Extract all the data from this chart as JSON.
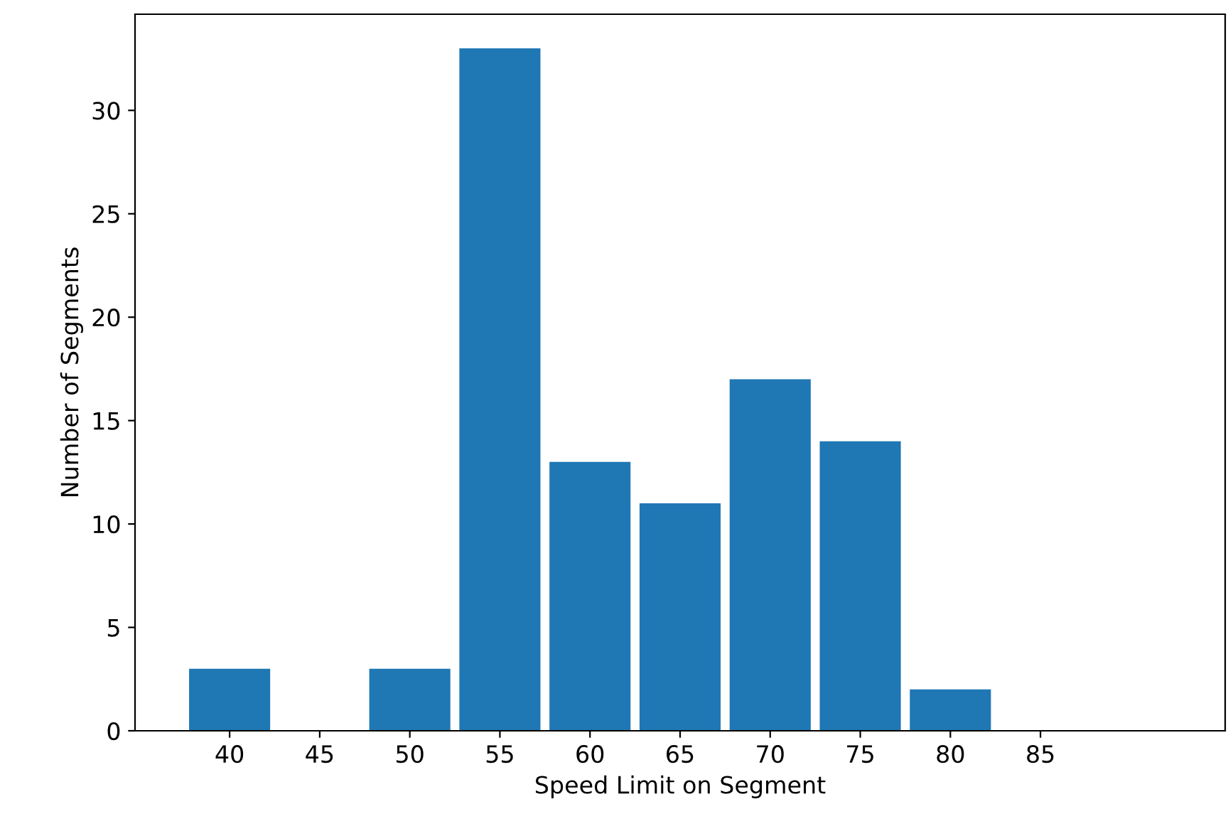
{
  "chart_data": {
    "type": "histogram",
    "xlabel": "Speed Limit on Segment",
    "ylabel": "Number of Segments",
    "bins": [
      37.5,
      42.5,
      47.5,
      52.5,
      57.5,
      62.5,
      67.5,
      72.5,
      77.5,
      82.5,
      87.5,
      92.5
    ],
    "values": [
      3,
      0,
      3,
      33,
      13,
      11,
      17,
      14,
      2,
      0,
      0
    ],
    "color": "#1f77b4",
    "xlim": [
      34.75,
      95.25
    ],
    "xticks": [
      40,
      45,
      50,
      55,
      60,
      65,
      70,
      75,
      80,
      85
    ],
    "ylim": [
      0,
      34.65
    ],
    "yticks": [
      0,
      5,
      10,
      15,
      20,
      25,
      30
    ],
    "grid": false
  }
}
